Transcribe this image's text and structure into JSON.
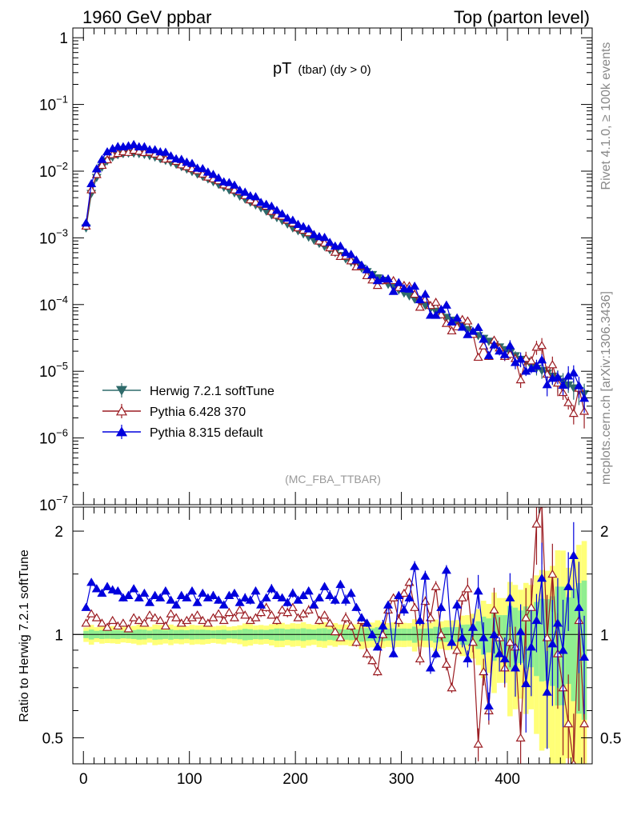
{
  "header": {
    "left": "1960 GeV ppbar",
    "right": "Top (parton level)"
  },
  "side_labels": {
    "rivet": "Rivet 4.1.0, ≥ 100k events",
    "mcplots": "mcplots.cern.ch [arXiv:1306.3436]"
  },
  "chart_data": {
    "type": "line",
    "title": "pT",
    "title_sub": "(tbar) (dy > 0)",
    "tag": "(MC_FBA_TTBAR)",
    "xlim": [
      -10,
      480
    ],
    "x_ticks": [
      0,
      100,
      200,
      300,
      400
    ],
    "x_tick_labels": [
      "0",
      "100",
      "200",
      "300",
      "400"
    ],
    "main": {
      "yscale": "log",
      "ylim": [
        1e-07,
        1.4
      ],
      "y_ticks": [
        1,
        0.1,
        0.01,
        0.001,
        0.0001,
        1e-05,
        1e-06,
        1e-07
      ],
      "y_tick_labels": [
        {
          "base": "1",
          "exp": ""
        },
        {
          "base": "10",
          "exp": "−1"
        },
        {
          "base": "10",
          "exp": "−2"
        },
        {
          "base": "10",
          "exp": "−3"
        },
        {
          "base": "10",
          "exp": "−4"
        },
        {
          "base": "10",
          "exp": "−5"
        },
        {
          "base": "10",
          "exp": "−6"
        },
        {
          "base": "10",
          "exp": "−7"
        }
      ]
    },
    "ratio": {
      "ylabel": "Ratio to Herwig 7.2.1 softTune",
      "yscale": "log",
      "ylim": [
        0.42,
        2.35
      ],
      "y_ticks": [
        0.5,
        1,
        2
      ],
      "y_tick_labels": [
        "0.5",
        "1",
        "2"
      ],
      "reference": 1
    },
    "legend": {
      "position": "lower-left",
      "entries": [
        {
          "label": "Herwig 7.2.1 softTune",
          "color": "#2f6b6b",
          "marker": "triangle-down-filled"
        },
        {
          "label": "Pythia 6.428 370",
          "color": "#9b1c22",
          "marker": "triangle-up-open"
        },
        {
          "label": "Pythia 8.315 default",
          "color": "#0000dd",
          "marker": "triangle-up-filled"
        }
      ]
    },
    "bands": {
      "inner_color": "#90ee90",
      "outer_color": "#ffff77"
    },
    "x": [
      2.5,
      7.5,
      12.5,
      17.5,
      22.5,
      27.5,
      32.5,
      37.5,
      42.5,
      47.5,
      52.5,
      57.5,
      62.5,
      67.5,
      72.5,
      77.5,
      82.5,
      87.5,
      92.5,
      97.5,
      102.5,
      107.5,
      112.5,
      117.5,
      122.5,
      127.5,
      132.5,
      137.5,
      142.5,
      147.5,
      152.5,
      157.5,
      162.5,
      167.5,
      172.5,
      177.5,
      182.5,
      187.5,
      192.5,
      197.5,
      202.5,
      207.5,
      212.5,
      217.5,
      222.5,
      227.5,
      232.5,
      237.5,
      242.5,
      247.5,
      252.5,
      257.5,
      262.5,
      267.5,
      272.5,
      277.5,
      282.5,
      287.5,
      292.5,
      297.5,
      302.5,
      307.5,
      312.5,
      317.5,
      322.5,
      327.5,
      332.5,
      337.5,
      342.5,
      347.5,
      352.5,
      357.5,
      362.5,
      367.5,
      372.5,
      377.5,
      382.5,
      387.5,
      392.5,
      397.5,
      402.5,
      407.5,
      412.5,
      417.5,
      422.5,
      427.5,
      432.5,
      437.5,
      442.5,
      447.5,
      452.5,
      457.5,
      462.5,
      467.5,
      472.5
    ],
    "series": [
      {
        "name": "Herwig 7.2.1 softTune",
        "values": [
          0.0014,
          0.0046,
          0.008,
          0.0114,
          0.0142,
          0.0162,
          0.0175,
          0.0182,
          0.0185,
          0.0185,
          0.0182,
          0.0177,
          0.017,
          0.0162,
          0.0153,
          0.0144,
          0.0135,
          0.0126,
          0.0116,
          0.0107,
          0.0098,
          0.009,
          0.0083,
          0.0076,
          0.0069,
          0.0063,
          0.0057,
          0.0052,
          0.0047,
          0.0042,
          0.0038,
          0.0034,
          0.0031,
          0.0028,
          0.0025,
          0.0022,
          0.002,
          0.0018,
          0.0016,
          0.0014,
          0.00127,
          0.00114,
          0.00102,
          0.00092,
          0.00082,
          0.00074,
          0.00066,
          0.0006,
          0.00054,
          0.00048,
          0.00043,
          0.00039,
          0.00035,
          0.00031,
          0.00028,
          0.00025,
          0.00023,
          0.0002,
          0.00018,
          0.000165,
          0.000148,
          0.000134,
          0.00012,
          0.000108,
          9.7e-05,
          8.7e-05,
          7.9e-05,
          7.1e-05,
          6.4e-05,
          5.8e-05,
          5.2e-05,
          4.7e-05,
          4.2e-05,
          3.8e-05,
          3.4e-05,
          3.1e-05,
          2.8e-05,
          2.5e-05,
          2.3e-05,
          2.1e-05,
          1.9e-05,
          1.7e-05,
          1.5e-05,
          1.4e-05,
          1.2e-05,
          1.1e-05,
          1.02e-05,
          9.3e-06,
          8.4e-06,
          7.6e-06,
          6.9e-06,
          6.2e-06,
          5.6e-06,
          5.1e-06,
          4.6e-06
        ],
        "ratio": [
          1.0,
          1.0,
          1.0,
          1.0,
          1.0,
          1.0,
          1.0,
          1.0,
          1.0,
          1.0,
          1.0,
          1.0,
          1.0,
          1.0,
          1.0,
          1.0,
          1.0,
          1.0,
          1.0,
          1.0,
          1.0,
          1.0,
          1.0,
          1.0,
          1.0,
          1.0,
          1.0,
          1.0,
          1.0,
          1.0,
          1.0,
          1.0,
          1.0,
          1.0,
          1.0,
          1.0,
          1.0,
          1.0,
          1.0,
          1.0,
          1.0,
          1.0,
          1.0,
          1.0,
          1.0,
          1.0,
          1.0,
          1.0,
          1.0,
          1.0,
          1.0,
          1.0,
          1.0,
          1.0,
          1.0,
          1.0,
          1.0,
          1.0,
          1.0,
          1.0,
          1.0,
          1.0,
          1.0,
          1.0,
          1.0,
          1.0,
          1.0,
          1.0,
          1.0,
          1.0,
          1.0,
          1.0,
          1.0,
          1.0,
          1.0,
          1.0,
          1.0,
          1.0,
          1.0,
          1.0,
          1.0,
          1.0,
          1.0,
          1.0,
          1.0,
          1.0,
          1.0,
          1.0,
          1.0,
          1.0,
          1.0,
          1.0,
          1.0,
          1.0,
          1.0
        ]
      },
      {
        "name": "Pythia 6.428 370",
        "ratio": [
          1.08,
          1.15,
          1.12,
          1.08,
          1.05,
          1.1,
          1.06,
          1.08,
          1.04,
          1.12,
          1.1,
          1.08,
          1.14,
          1.12,
          1.1,
          1.06,
          1.15,
          1.12,
          1.08,
          1.1,
          1.12,
          1.14,
          1.1,
          1.08,
          1.12,
          1.15,
          1.1,
          1.16,
          1.12,
          1.18,
          1.14,
          1.1,
          1.12,
          1.16,
          1.2,
          1.14,
          1.1,
          1.18,
          1.16,
          1.2,
          1.12,
          1.15,
          1.18,
          1.22,
          1.1,
          1.14,
          1.08,
          1.02,
          0.98,
          1.12,
          1.06,
          0.95,
          1.1,
          0.88,
          0.84,
          0.78,
          1.0,
          1.18,
          1.28,
          1.1,
          1.32,
          1.42,
          1.2,
          0.85,
          1.25,
          1.12,
          1.38,
          1.0,
          0.82,
          0.7,
          0.9,
          1.28,
          1.36,
          0.95,
          0.48,
          0.78,
          0.6,
          1.18,
          0.98,
          0.8,
          0.95,
          0.92,
          0.5,
          1.12,
          1.2,
          2.1,
          2.4,
          0.98,
          1.5,
          0.88,
          0.7,
          0.55,
          0.42,
          1.1,
          0.55
        ]
      },
      {
        "name": "Pythia 8.315 default",
        "ratio": [
          1.2,
          1.42,
          1.36,
          1.32,
          1.38,
          1.35,
          1.34,
          1.28,
          1.3,
          1.36,
          1.28,
          1.32,
          1.24,
          1.3,
          1.28,
          1.34,
          1.26,
          1.22,
          1.3,
          1.28,
          1.34,
          1.24,
          1.32,
          1.28,
          1.3,
          1.26,
          1.22,
          1.3,
          1.32,
          1.24,
          1.28,
          1.26,
          1.34,
          1.22,
          1.28,
          1.36,
          1.3,
          1.28,
          1.24,
          1.32,
          1.26,
          1.3,
          1.34,
          1.22,
          1.28,
          1.38,
          1.3,
          1.26,
          1.4,
          1.26,
          1.32,
          1.2,
          1.12,
          1.08,
          1.0,
          0.92,
          1.06,
          1.22,
          0.88,
          1.3,
          1.18,
          1.28,
          1.58,
          1.1,
          1.48,
          0.8,
          0.88,
          1.2,
          1.54,
          0.95,
          1.22,
          0.98,
          0.85,
          1.05,
          1.34,
          0.98,
          0.62,
          1.0,
          0.88,
          0.85,
          1.28,
          0.8,
          1.02,
          0.72,
          0.92,
          1.1,
          1.46,
          0.68,
          0.94,
          1.08,
          0.9,
          1.38,
          1.7,
          1.2,
          0.86
        ]
      }
    ]
  }
}
